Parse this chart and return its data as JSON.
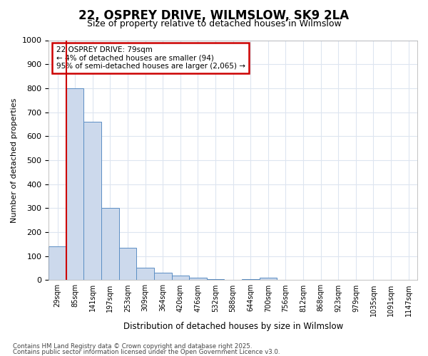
{
  "title1": "22, OSPREY DRIVE, WILMSLOW, SK9 2LA",
  "title2": "Size of property relative to detached houses in Wilmslow",
  "xlabel": "Distribution of detached houses by size in Wilmslow",
  "ylabel": "Number of detached properties",
  "annotation_line1": "22 OSPREY DRIVE: 79sqm",
  "annotation_line2": "← 4% of detached houses are smaller (94)",
  "annotation_line3": "95% of semi-detached houses are larger (2,065) →",
  "categories": [
    "29sqm",
    "85sqm",
    "141sqm",
    "197sqm",
    "253sqm",
    "309sqm",
    "364sqm",
    "420sqm",
    "476sqm",
    "532sqm",
    "588sqm",
    "644sqm",
    "700sqm",
    "756sqm",
    "812sqm",
    "868sqm",
    "923sqm",
    "979sqm",
    "1035sqm",
    "1091sqm",
    "1147sqm"
  ],
  "values": [
    140,
    800,
    660,
    300,
    135,
    52,
    30,
    18,
    10,
    5,
    0,
    5,
    10,
    2,
    1,
    0,
    0,
    0,
    0,
    0,
    0
  ],
  "bar_color": "#ccd9ec",
  "bar_edge_color": "#5b8ec4",
  "highlight_color": "#cc0000",
  "ylim": [
    0,
    1000
  ],
  "yticks": [
    0,
    100,
    200,
    300,
    400,
    500,
    600,
    700,
    800,
    900,
    1000
  ],
  "background_color": "#ffffff",
  "plot_bg_color": "#ffffff",
  "grid_color": "#dde5f0",
  "annotation_box_facecolor": "#ffffff",
  "annotation_box_edgecolor": "#cc0000",
  "footer1": "Contains HM Land Registry data © Crown copyright and database right 2025.",
  "footer2": "Contains public sector information licensed under the Open Government Licence v3.0."
}
